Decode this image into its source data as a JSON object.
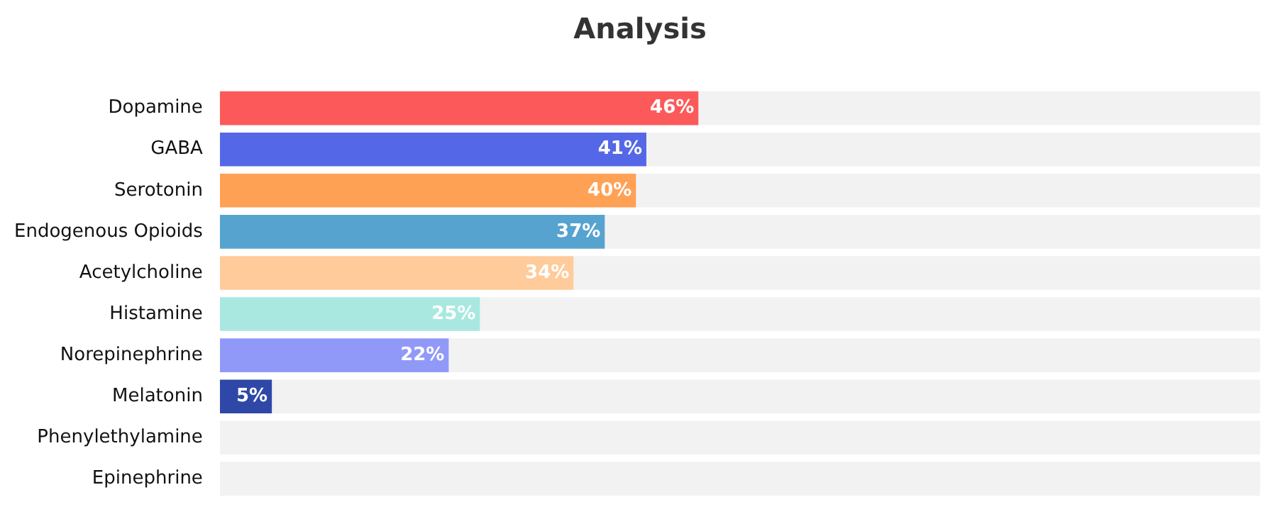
{
  "chart_data": {
    "type": "bar",
    "orientation": "horizontal",
    "title": "Analysis",
    "categories": [
      "Dopamine",
      "GABA",
      "Serotonin",
      "Endogenous Opioids",
      "Acetylcholine",
      "Histamine",
      "Norepinephrine",
      "Melatonin",
      "Phenylethylamine",
      "Epinephrine"
    ],
    "stacked": true,
    "series": [
      {
        "colors": [
          "#fc5a5a",
          "#5468e7",
          "#ffa154",
          "#56a3d0",
          "#ffcb9a",
          "#a8e8e0",
          "#9199f8",
          "#2f48a8",
          "#cccccc",
          "#cccccc"
        ],
        "values": [
          46,
          41,
          40,
          37,
          34,
          25,
          22,
          5,
          0,
          0
        ],
        "value_labels": [
          "46%",
          "41%",
          "40%",
          "37%",
          "34%",
          "25%",
          "22%",
          "5%",
          null,
          null
        ]
      },
      {
        "color": "#f2f2f2",
        "values": [
          54,
          59,
          60,
          63,
          66,
          75,
          78,
          95,
          100,
          100
        ]
      }
    ],
    "xlim": [
      0,
      100
    ],
    "tick_labels": "y",
    "legend": false
  }
}
